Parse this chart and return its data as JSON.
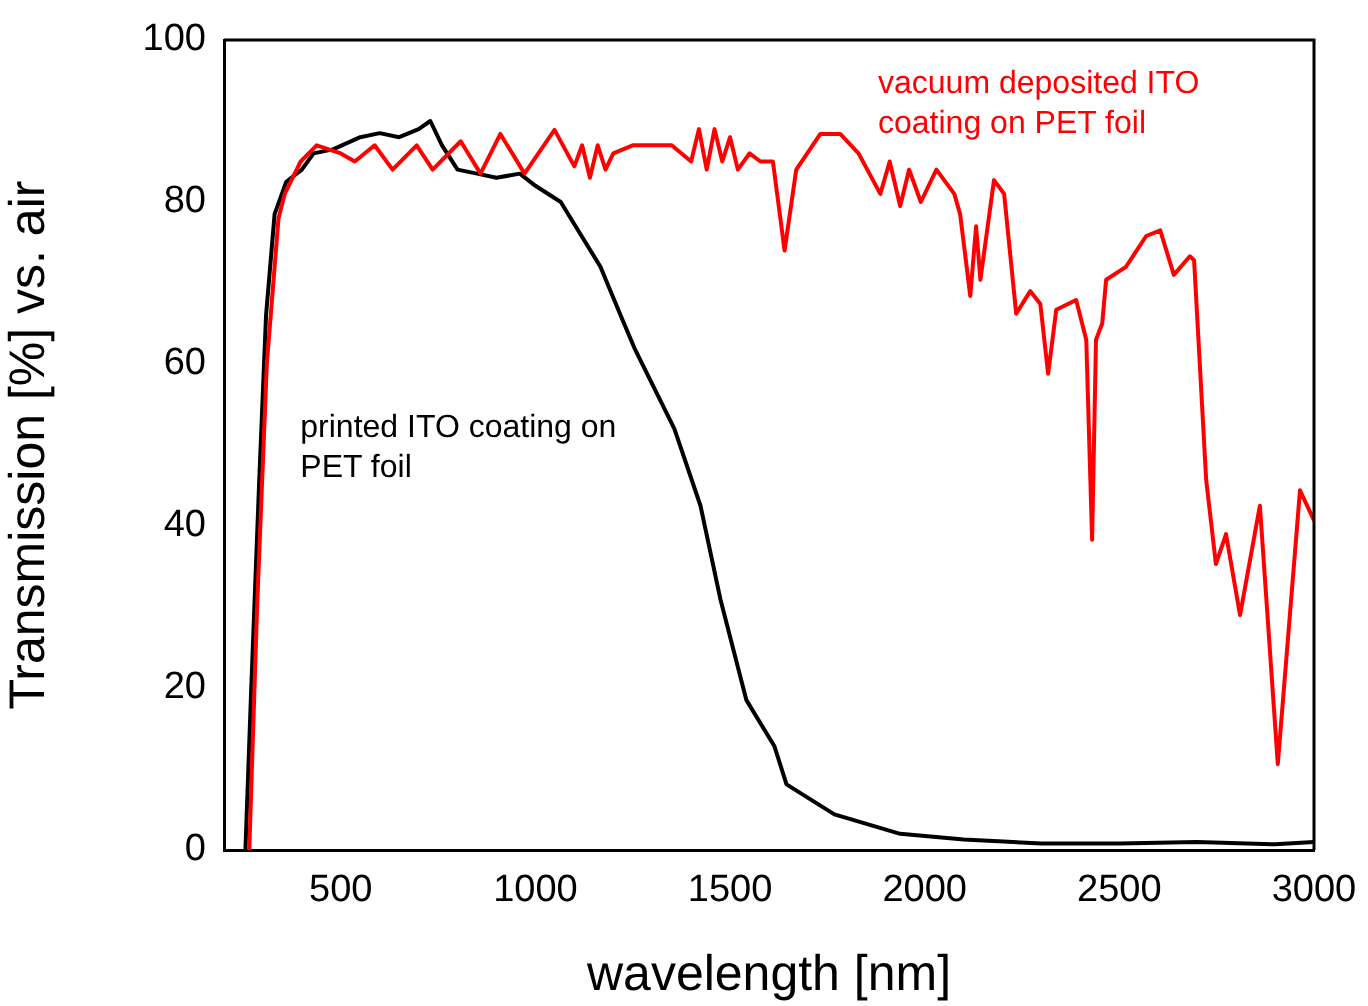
{
  "chart_data": {
    "type": "line",
    "xlabel": "wavelength [nm]",
    "ylabel": "Transmission [%] vs. air",
    "xlim": [
      200,
      3000
    ],
    "ylim": [
      0,
      100
    ],
    "xticks": [
      500,
      1000,
      1500,
      2000,
      2500,
      3000
    ],
    "yticks": [
      0,
      20,
      40,
      60,
      80,
      100
    ],
    "grid": false,
    "legend": false,
    "marker": "none",
    "line_style": "solid",
    "series": [
      {
        "name": "vacuum deposited ITO coating on PET foil",
        "color": "#ff0000",
        "x": [
          265,
          285,
          310,
          340,
          356,
          397,
          438,
          500,
          536,
          587,
          633,
          695,
          736,
          808,
          859,
          910,
          972,
          1049,
          1100,
          1120,
          1140,
          1160,
          1180,
          1200,
          1250,
          1300,
          1350,
          1400,
          1420,
          1440,
          1460,
          1480,
          1500,
          1520,
          1550,
          1578,
          1610,
          1640,
          1670,
          1732,
          1783,
          1830,
          1886,
          1910,
          1937,
          1960,
          1990,
          2030,
          2076,
          2091,
          2117,
          2132,
          2143,
          2178,
          2204,
          2235,
          2271,
          2297,
          2317,
          2338,
          2389,
          2415,
          2430,
          2440,
          2456,
          2466,
          2517,
          2569,
          2605,
          2640,
          2681,
          2692,
          2723,
          2748,
          2774,
          2810,
          2861,
          2907,
          2964,
          3000
        ],
        "values": [
          0,
          30,
          60,
          78,
          81,
          85,
          87,
          86,
          85,
          87,
          84,
          87,
          84,
          87.5,
          83.5,
          88.4,
          83.5,
          88.9,
          84.4,
          87,
          83,
          87,
          84,
          86,
          87,
          87,
          87,
          85,
          89,
          84,
          89,
          85,
          88,
          84,
          86,
          85,
          85,
          74,
          84,
          88.4,
          88.4,
          86,
          81,
          85,
          79.5,
          84,
          80,
          84,
          81,
          78.5,
          68.4,
          77,
          70.4,
          82.7,
          81,
          66.2,
          69,
          67.4,
          58.8,
          66.7,
          67.9,
          63,
          38.3,
          63,
          65,
          70.4,
          72,
          75.8,
          76.5,
          71,
          73.3,
          72.8,
          45.7,
          35.3,
          39,
          29,
          42.5,
          10.6,
          44.4,
          40.7
        ]
      },
      {
        "name": "printed ITO coating on PET foil",
        "color": "#000000",
        "x": [
          255,
          270,
          290,
          308,
          330,
          360,
          400,
          430,
          480,
          550,
          600,
          650,
          700,
          730,
          760,
          800,
          850,
          900,
          960,
          1000,
          1065,
          1167,
          1219,
          1254,
          1357,
          1424,
          1475,
          1542,
          1614,
          1645,
          1768,
          1937,
          2100,
          2300,
          2500,
          2700,
          2900,
          3000
        ],
        "values": [
          0,
          20,
          45,
          66,
          78.5,
          82.5,
          84,
          86,
          86.5,
          88,
          88.5,
          88,
          89,
          90,
          87,
          84,
          83.5,
          83,
          83.5,
          82,
          80,
          72,
          66,
          62,
          52,
          42.5,
          31,
          18.5,
          12.8,
          8.1,
          4.4,
          2,
          1.3,
          0.8,
          0.8,
          1,
          0.7,
          1
        ]
      }
    ]
  }
}
